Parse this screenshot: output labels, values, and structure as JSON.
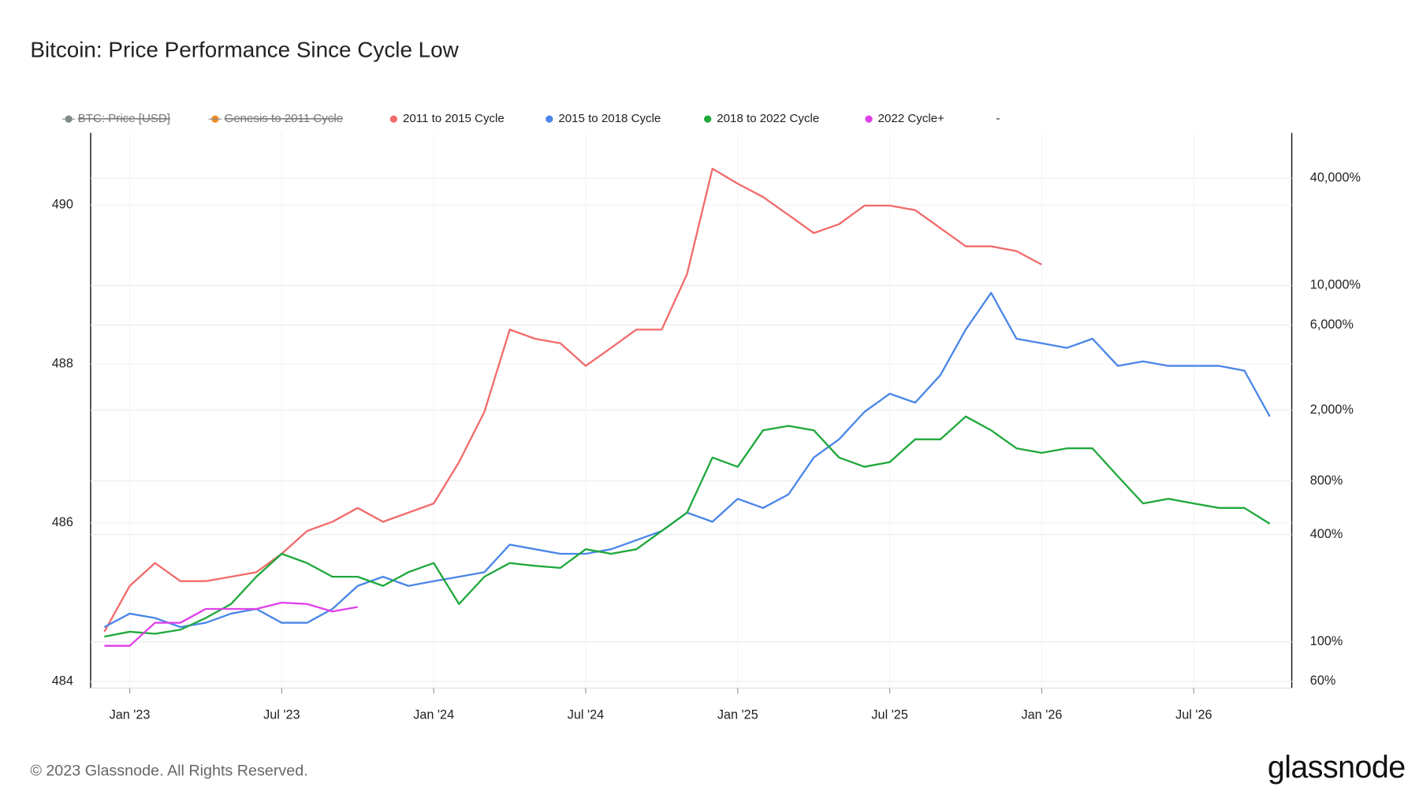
{
  "chart_data": {
    "type": "line",
    "title": "Bitcoin: Price Performance Since Cycle Low",
    "footer": "© 2023 Glassnode. All Rights Reserved.",
    "logo": "glassnode",
    "hidden_series": [
      {
        "name": "BTC: Price [USD]",
        "color": "#7f8c8d"
      },
      {
        "name": "Genesis to 2011 Cycle",
        "color": "#f28c28"
      }
    ],
    "legend_extra": "-",
    "x": [
      "2022-12",
      "2023-01",
      "2023-02",
      "2023-03",
      "2023-04",
      "2023-05",
      "2023-06",
      "2023-07",
      "2023-08",
      "2023-09",
      "2023-10",
      "2023-11",
      "2023-12",
      "2024-01",
      "2024-02",
      "2024-03",
      "2024-04",
      "2024-05",
      "2024-06",
      "2024-07",
      "2024-08",
      "2024-09",
      "2024-10",
      "2024-11",
      "2024-12",
      "2025-01",
      "2025-02",
      "2025-03",
      "2025-04",
      "2025-05",
      "2025-06",
      "2025-07",
      "2025-08",
      "2025-09",
      "2025-10",
      "2025-11",
      "2025-12",
      "2026-01",
      "2026-02",
      "2026-03",
      "2026-04",
      "2026-05",
      "2026-06",
      "2026-07",
      "2026-08",
      "2026-09",
      "2026-10"
    ],
    "xlim": [
      "2022-12",
      "2026-10"
    ],
    "xticks": [
      {
        "value": "2023-01",
        "label": "Jan '23"
      },
      {
        "value": "2023-07",
        "label": "Jul '23"
      },
      {
        "value": "2024-01",
        "label": "Jan '24"
      },
      {
        "value": "2024-07",
        "label": "Jul '24"
      },
      {
        "value": "2025-01",
        "label": "Jan '25"
      },
      {
        "value": "2025-07",
        "label": "Jul '25"
      },
      {
        "value": "2026-01",
        "label": "Jan '26"
      },
      {
        "value": "2026-07",
        "label": "Jul '26"
      }
    ],
    "ylim": [
      483.92,
      490.91
    ],
    "yticks": [
      484,
      486,
      488,
      490
    ],
    "y2lim": [
      55,
      72000
    ],
    "y2log": true,
    "y2ticks": [
      {
        "value": 60,
        "label": "60%"
      },
      {
        "value": 100,
        "label": "100%"
      },
      {
        "value": 400,
        "label": "400%"
      },
      {
        "value": 800,
        "label": "800%"
      },
      {
        "value": 2000,
        "label": "2,000%"
      },
      {
        "value": 6000,
        "label": "6,000%"
      },
      {
        "value": 10000,
        "label": "10,000%"
      },
      {
        "value": 40000,
        "label": "40,000%"
      }
    ],
    "grid": true,
    "series": [
      {
        "name": "2011 to 2015 Cycle",
        "color": "#f26b6b",
        "axis": "y2",
        "values": [
          114,
          206,
          277,
          219,
          219,
          232,
          246,
          312,
          419,
          472,
          564,
          472,
          531,
          598,
          1020,
          1953,
          5660,
          5030,
          4740,
          3540,
          4470,
          5660,
          5660,
          11600,
          45300,
          37300,
          31400,
          24900,
          19700,
          22100,
          28100,
          28100,
          26500,
          21000,
          16600,
          16600,
          15600,
          13100,
          null,
          null,
          null,
          null,
          null,
          null,
          null,
          null,
          null
        ]
      },
      {
        "name": "2015 to 2018 Cycle",
        "color": "#4a86e8",
        "axis": "y2",
        "values": [
          121,
          144,
          136,
          121,
          128,
          144,
          153,
          128,
          128,
          153,
          206,
          232,
          206,
          219,
          232,
          246,
          351,
          331,
          312,
          312,
          331,
          372,
          419,
          531,
          472,
          635,
          564,
          672,
          1082,
          1370,
          1953,
          2470,
          2200,
          3140,
          5660,
          9100,
          5030,
          4740,
          4470,
          5030,
          3540,
          3750,
          3540,
          3540,
          3540,
          3330,
          1840
        ]
      },
      {
        "name": "2018 to 2022 Cycle",
        "color": "#1fa83c",
        "axis": "y2",
        "values": [
          107,
          114,
          111,
          117,
          136,
          163,
          232,
          312,
          277,
          232,
          232,
          206,
          246,
          277,
          163,
          232,
          277,
          267,
          260,
          331,
          312,
          331,
          419,
          531,
          1082,
          961,
          1540,
          1630,
          1540,
          1082,
          961,
          1020,
          1370,
          1370,
          1840,
          1540,
          1220,
          1150,
          1220,
          1220,
          850,
          598,
          635,
          598,
          564,
          564,
          460
        ]
      },
      {
        "name": "2022 Cycle+",
        "color": "#e040e8",
        "axis": "y2",
        "values": [
          95,
          95,
          128,
          128,
          153,
          153,
          153,
          166,
          163,
          148,
          157,
          null,
          null,
          null,
          null,
          null,
          null,
          null,
          null,
          null,
          null,
          null,
          null,
          null,
          null,
          null,
          null,
          null,
          null,
          null,
          null,
          null,
          null,
          null,
          null,
          null,
          null,
          null,
          null,
          null,
          null,
          null,
          null,
          null,
          null,
          null,
          null
        ]
      }
    ]
  }
}
